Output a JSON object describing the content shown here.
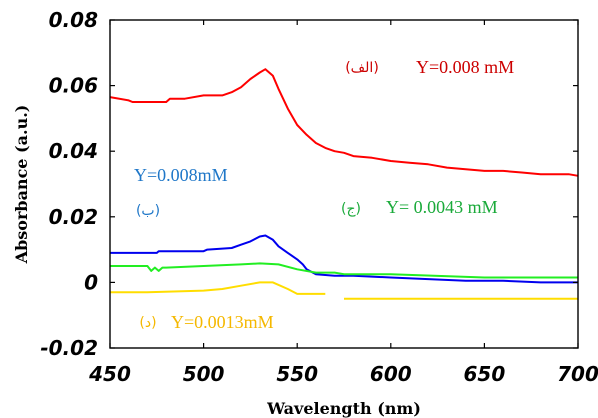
{
  "chart_data": {
    "type": "line",
    "title": "",
    "xlabel": "Wavelength (nm)",
    "ylabel": "Absorbance (a.u.)",
    "xlim": [
      450,
      700
    ],
    "ylim": [
      -0.02,
      0.08
    ],
    "xticks": [
      "450",
      "500",
      "550",
      "600",
      "650",
      "700"
    ],
    "yticks": [
      "-0.02",
      "0",
      "0.02",
      "0.04",
      "0.06",
      "0.08"
    ],
    "grid": false,
    "series": [
      {
        "key": "alef",
        "color": "#ff0000",
        "x": [
          450,
          460,
          462,
          480,
          482,
          490,
          500,
          510,
          515,
          520,
          525,
          530,
          533,
          537,
          540,
          545,
          550,
          555,
          560,
          565,
          570,
          575,
          580,
          590,
          600,
          610,
          620,
          630,
          640,
          650,
          660,
          670,
          680,
          690,
          695,
          700
        ],
        "y": [
          0.0565,
          0.0555,
          0.055,
          0.055,
          0.056,
          0.056,
          0.057,
          0.057,
          0.058,
          0.0595,
          0.062,
          0.064,
          0.065,
          0.063,
          0.059,
          0.053,
          0.048,
          0.045,
          0.0425,
          0.041,
          0.04,
          0.0395,
          0.0385,
          0.038,
          0.037,
          0.0365,
          0.036,
          0.035,
          0.0345,
          0.034,
          0.034,
          0.0335,
          0.033,
          0.033,
          0.033,
          0.0325
        ]
      },
      {
        "key": "be",
        "color": "#0000ee",
        "x": [
          450,
          475,
          476,
          500,
          502,
          515,
          520,
          525,
          530,
          533,
          537,
          540,
          545,
          550,
          553,
          555,
          560,
          570,
          580,
          600,
          620,
          640,
          660,
          680,
          700
        ],
        "y": [
          0.009,
          0.009,
          0.0095,
          0.0095,
          0.01,
          0.0105,
          0.0115,
          0.0125,
          0.014,
          0.0143,
          0.013,
          0.011,
          0.009,
          0.007,
          0.0055,
          0.004,
          0.0025,
          0.002,
          0.002,
          0.0015,
          0.001,
          0.0005,
          0.0005,
          0.0,
          0.0
        ]
      },
      {
        "key": "jim",
        "color": "#22ee22",
        "x": [
          450,
          470,
          472,
          474,
          476,
          478,
          480,
          500,
          520,
          530,
          540,
          550,
          560,
          570,
          575,
          600,
          650,
          700
        ],
        "y": [
          0.005,
          0.005,
          0.0035,
          0.0045,
          0.0035,
          0.0045,
          0.0045,
          0.005,
          0.0055,
          0.0058,
          0.0055,
          0.004,
          0.003,
          0.003,
          0.0025,
          0.0025,
          0.0015,
          0.0015
        ]
      },
      {
        "key": "dal",
        "color": "#ffdd00",
        "x": [
          450,
          470,
          500,
          510,
          520,
          530,
          537,
          545,
          550,
          555,
          560,
          565
        ],
        "y": [
          -0.003,
          -0.003,
          -0.0025,
          -0.002,
          -0.001,
          0.0,
          0.0,
          -0.002,
          -0.0035,
          -0.0035,
          -0.0035,
          -0.0035
        ]
      },
      {
        "key": "dal-tail",
        "color": "#ffdd00",
        "x": [
          575,
          700
        ],
        "y": [
          -0.005,
          -0.005
        ]
      }
    ],
    "annotations": [
      {
        "key": "alef",
        "marker": "(الف)",
        "text": "Y=0.008 mM",
        "color": "#cc0000"
      },
      {
        "key": "be",
        "marker": "(ب)",
        "text": "Y=0.008mM",
        "color": "#1f77c8"
      },
      {
        "key": "jim",
        "marker": "(ج)",
        "text": "Y= 0.0043 mM",
        "color": "#1aaa3a"
      },
      {
        "key": "dal",
        "marker": "(د)",
        "text": "Y=0.0013mM",
        "color": "#f5b800"
      }
    ]
  }
}
